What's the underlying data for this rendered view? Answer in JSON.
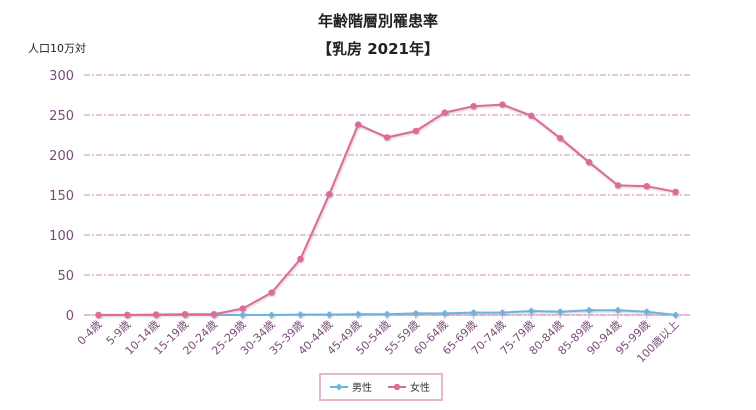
{
  "chart_data": {
    "type": "line",
    "title": "年齢階層別罹患率",
    "subtitle": "【乳房 2021年】",
    "ylabel": "人口10万対",
    "xlabel": "",
    "ylim": [
      0,
      300
    ],
    "yticks": [
      "0",
      "50",
      "100",
      "150",
      "200",
      "250",
      "300"
    ],
    "grid": true,
    "legend": "bottom",
    "categories": [
      "0-4歳",
      "5-9歳",
      "10-14歳",
      "15-19歳",
      "20-24歳",
      "25-29歳",
      "30-34歳",
      "35-39歳",
      "40-44歳",
      "45-49歳",
      "50-54歳",
      "55-59歳",
      "60-64歳",
      "65-69歳",
      "70-74歳",
      "75-79歳",
      "80-84歳",
      "85-89歳",
      "90-94歳",
      "95-99歳",
      "100歳以上"
    ],
    "series": [
      {
        "name": "男性",
        "color": "#6bb5e0",
        "marker": "diamond",
        "values": [
          0,
          0,
          0,
          0,
          0,
          0,
          0,
          0.5,
          0.5,
          1,
          1,
          2,
          2,
          3,
          3,
          5,
          4,
          6,
          6,
          4,
          0
        ]
      },
      {
        "name": "女性",
        "color": "#e0679b",
        "marker": "circle",
        "values": [
          0,
          0,
          0.5,
          1,
          1,
          8,
          28,
          70,
          151,
          238,
          222,
          230,
          253,
          261,
          263,
          249,
          221,
          191,
          162,
          161,
          154
        ]
      }
    ]
  }
}
